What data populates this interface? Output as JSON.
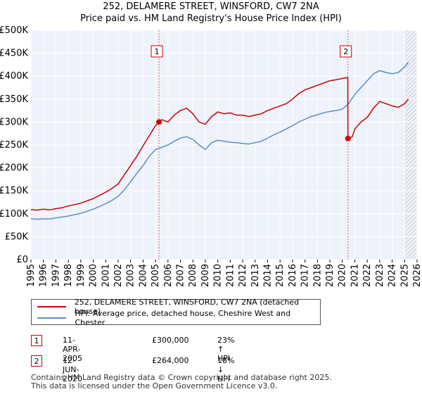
{
  "chart_data": {
    "type": "line",
    "title": "252, DELAMERE STREET, WINSFORD, CW7 2NA",
    "subtitle": "Price paid vs. HM Land Registry's House Price Index (HPI)",
    "xlabel": "",
    "ylabel": "",
    "xlim": [
      1995,
      2026
    ],
    "ylim": [
      0,
      500000
    ],
    "ytick_values": [
      0,
      50000,
      100000,
      150000,
      200000,
      250000,
      300000,
      350000,
      400000,
      450000,
      500000
    ],
    "ytick_labels": [
      "£0",
      "£50K",
      "£100K",
      "£150K",
      "£200K",
      "£250K",
      "£300K",
      "£350K",
      "£400K",
      "£450K",
      "£500K"
    ],
    "xtick_labels": [
      "1995",
      "1996",
      "1997",
      "1998",
      "1999",
      "2000",
      "2001",
      "2002",
      "2003",
      "2004",
      "2005",
      "2006",
      "2007",
      "2008",
      "2009",
      "2010",
      "2011",
      "2012",
      "2013",
      "2014",
      "2015",
      "2016",
      "2017",
      "2018",
      "2019",
      "2020",
      "2021",
      "2022",
      "2023",
      "2024",
      "2025",
      "2026"
    ],
    "grid": true,
    "forecast_start": 2025.0,
    "series": [
      {
        "name": "252, DELAMERE STREET, WINSFORD, CW7 2NA (detached house)",
        "color": "#cc0000",
        "x": [
          1995.0,
          1995.5,
          1996.0,
          1996.5,
          1997.0,
          1997.5,
          1998.0,
          1998.5,
          1999.0,
          1999.5,
          2000.0,
          2000.5,
          2001.0,
          2001.5,
          2002.0,
          2002.5,
          2003.0,
          2003.5,
          2004.0,
          2004.5,
          2005.0,
          2005.28,
          2005.5,
          2006.0,
          2006.5,
          2007.0,
          2007.5,
          2008.0,
          2008.5,
          2009.0,
          2009.5,
          2010.0,
          2010.5,
          2011.0,
          2011.5,
          2012.0,
          2012.5,
          2013.0,
          2013.5,
          2014.0,
          2014.5,
          2015.0,
          2015.5,
          2016.0,
          2016.5,
          2017.0,
          2017.5,
          2018.0,
          2018.5,
          2019.0,
          2019.5,
          2020.0,
          2020.44,
          2020.45,
          2020.8,
          2021.0,
          2021.5,
          2022.0,
          2022.5,
          2023.0,
          2023.5,
          2024.0,
          2024.5,
          2025.0,
          2025.3
        ],
        "values": [
          109000,
          108000,
          110000,
          108500,
          111000,
          113000,
          117000,
          120000,
          123000,
          128000,
          133000,
          140000,
          147000,
          155000,
          165000,
          185000,
          205000,
          225000,
          248000,
          270000,
          292000,
          300000,
          305000,
          300000,
          315000,
          325000,
          330000,
          318000,
          300000,
          295000,
          312000,
          322000,
          318000,
          320000,
          315000,
          315000,
          312000,
          315000,
          318000,
          325000,
          330000,
          335000,
          340000,
          350000,
          362000,
          370000,
          375000,
          380000,
          385000,
          390000,
          392000,
          395000,
          397000,
          264000,
          268000,
          285000,
          300000,
          310000,
          330000,
          345000,
          340000,
          335000,
          332000,
          340000,
          350000
        ]
      },
      {
        "name": "HPI: Average price, detached house, Cheshire West and Chester",
        "color": "#5b8ec9",
        "x": [
          1995.0,
          1995.5,
          1996.0,
          1996.5,
          1997.0,
          1997.5,
          1998.0,
          1998.5,
          1999.0,
          1999.5,
          2000.0,
          2000.5,
          2001.0,
          2001.5,
          2002.0,
          2002.5,
          2003.0,
          2003.5,
          2004.0,
          2004.5,
          2005.0,
          2005.5,
          2006.0,
          2006.5,
          2007.0,
          2007.5,
          2008.0,
          2008.5,
          2009.0,
          2009.5,
          2010.0,
          2010.5,
          2011.0,
          2011.5,
          2012.0,
          2012.5,
          2013.0,
          2013.5,
          2014.0,
          2014.5,
          2015.0,
          2015.5,
          2016.0,
          2016.5,
          2017.0,
          2017.5,
          2018.0,
          2018.5,
          2019.0,
          2019.5,
          2020.0,
          2020.5,
          2021.0,
          2021.5,
          2022.0,
          2022.5,
          2023.0,
          2023.5,
          2024.0,
          2024.5,
          2025.0,
          2025.3
        ],
        "values": [
          89000,
          88000,
          89000,
          88500,
          91000,
          93000,
          95000,
          98000,
          101000,
          105000,
          110000,
          116000,
          122000,
          129000,
          138000,
          152000,
          170000,
          188000,
          205000,
          225000,
          240000,
          245000,
          250000,
          258000,
          265000,
          268000,
          262000,
          250000,
          240000,
          255000,
          260000,
          258000,
          256000,
          255000,
          253000,
          252000,
          255000,
          258000,
          265000,
          272000,
          278000,
          285000,
          292000,
          300000,
          306000,
          312000,
          316000,
          320000,
          323000,
          325000,
          328000,
          340000,
          360000,
          375000,
          390000,
          405000,
          412000,
          408000,
          405000,
          408000,
          420000,
          430000
        ]
      }
    ],
    "markers": [
      {
        "label": "1",
        "x": 2005.28,
        "y": 300000
      },
      {
        "label": "2",
        "x": 2020.45,
        "y": 264000
      }
    ]
  },
  "legend": {
    "property": "252, DELAMERE STREET, WINSFORD, CW7 2NA (detached house)",
    "hpi": "HPI: Average price, detached house, Cheshire West and Chester"
  },
  "transactions": [
    {
      "num": "1",
      "date": "11-APR-2005",
      "price": "£300,000",
      "hpi": "23% ↑ HPI"
    },
    {
      "num": "2",
      "date": "12-JUN-2020",
      "price": "£264,000",
      "hpi": "18% ↓ HPI"
    }
  ],
  "footer": {
    "line1": "Contains HM Land Registry data © Crown copyright and database right 2025.",
    "line2": "This data is licensed under the Open Government Licence v3.0."
  },
  "colors": {
    "property": "#cc0000",
    "hpi": "#5b8ec9",
    "plot_bg": "#eef2fa",
    "grid": "#ffffff"
  }
}
